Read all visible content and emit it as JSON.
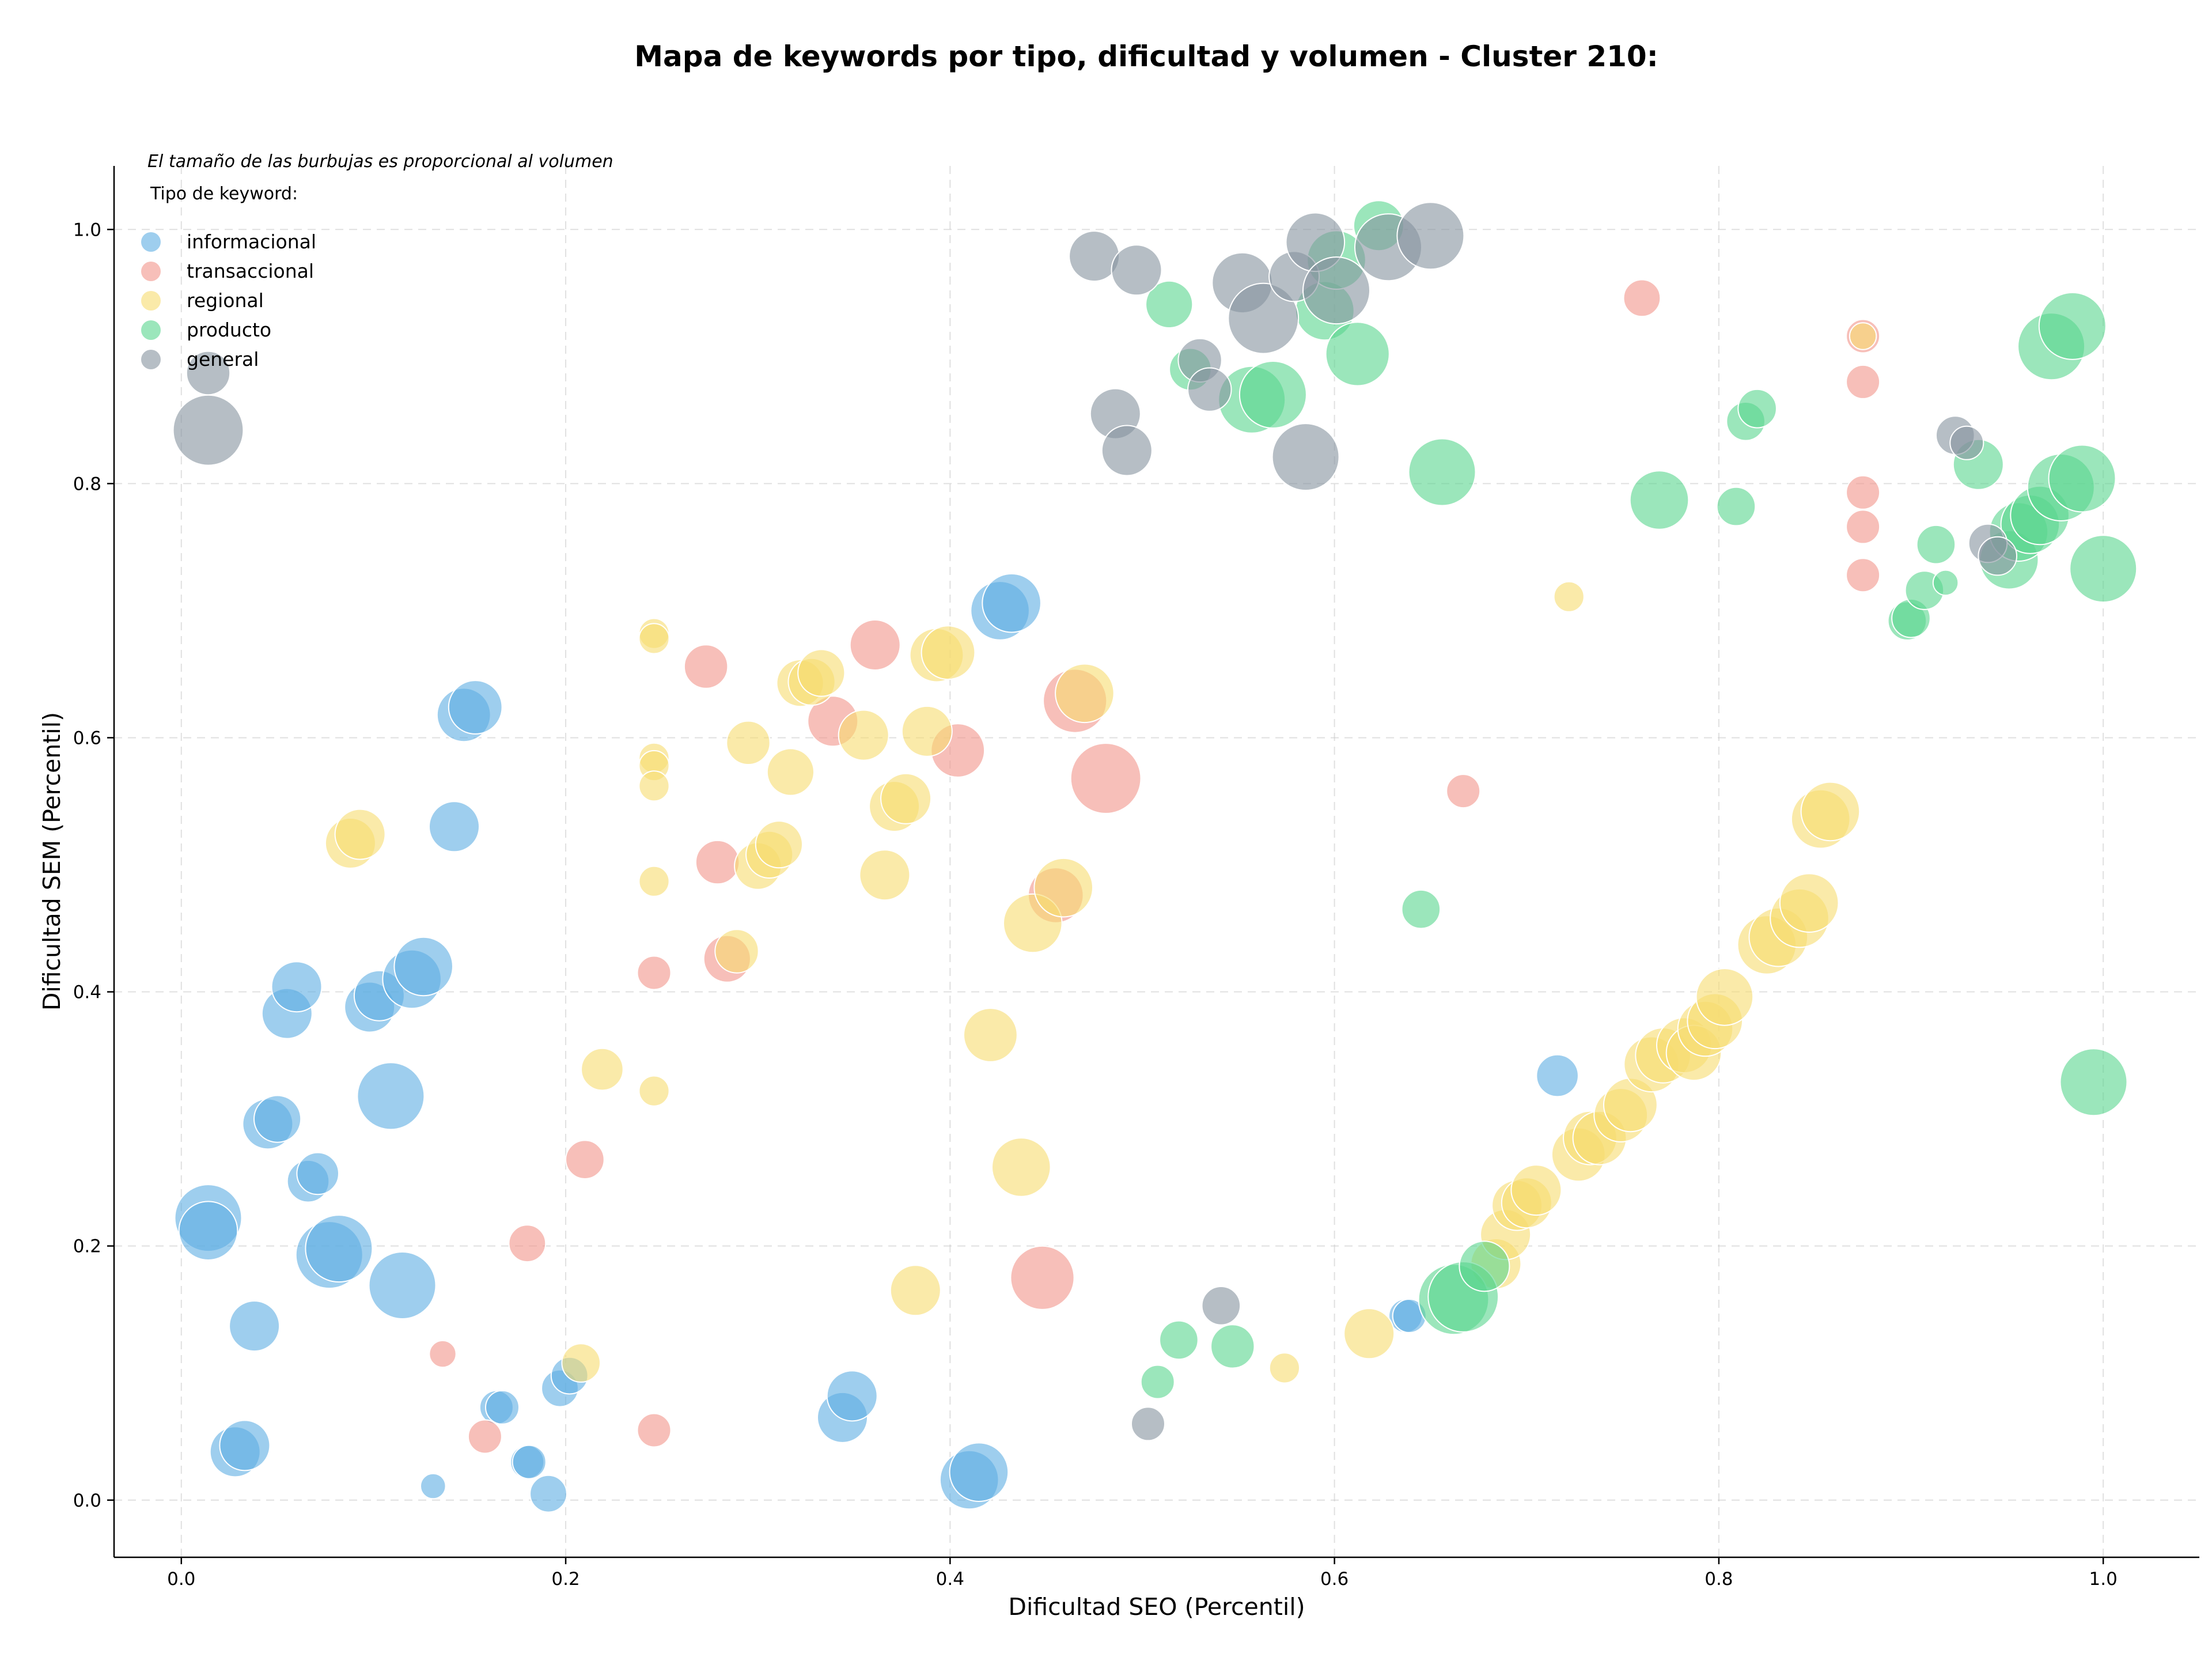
{
  "chart_data": {
    "type": "scatter",
    "title": "Mapa de keywords por tipo, dificultad y volumen - Cluster 210:",
    "xlabel": "Dificultad SEO (Percentil)",
    "ylabel": "Dificultad SEM (Percentil)",
    "xlim": [
      -0.035,
      1.05
    ],
    "ylim": [
      -0.045,
      1.05
    ],
    "x_ticks": [
      "0.0",
      "0.2",
      "0.4",
      "0.6",
      "0.8",
      "1.0"
    ],
    "y_ticks": [
      "0.0",
      "0.2",
      "0.4",
      "0.6",
      "0.8",
      "1.0"
    ],
    "grid": true,
    "note": "El tamaño de las burbujas es proporcional al volumen",
    "legend_title": "Tipo de keyword:",
    "legend_position": "top-left",
    "series": [
      {
        "name": "informacional",
        "color": "#5DADE2",
        "points": [
          [
            0.014,
            0.222,
            4
          ],
          [
            0.014,
            0.212,
            3.5
          ],
          [
            0.038,
            0.137,
            3
          ],
          [
            0.028,
            0.038,
            3
          ],
          [
            0.033,
            0.043,
            3
          ],
          [
            0.045,
            0.296,
            3
          ],
          [
            0.05,
            0.3,
            2.8
          ],
          [
            0.055,
            0.383,
            3
          ],
          [
            0.06,
            0.404,
            3
          ],
          [
            0.066,
            0.251,
            2.5
          ],
          [
            0.071,
            0.257,
            2.5
          ],
          [
            0.077,
            0.193,
            4
          ],
          [
            0.082,
            0.198,
            4
          ],
          [
            0.098,
            0.388,
            3
          ],
          [
            0.103,
            0.397,
            3
          ],
          [
            0.109,
            0.318,
            4
          ],
          [
            0.115,
            0.169,
            4
          ],
          [
            0.12,
            0.41,
            3.5
          ],
          [
            0.126,
            0.42,
            3.5
          ],
          [
            0.142,
            0.53,
            3
          ],
          [
            0.147,
            0.618,
            3.2
          ],
          [
            0.153,
            0.624,
            3.2
          ],
          [
            0.131,
            0.011,
            1.5
          ],
          [
            0.164,
            0.073,
            2
          ],
          [
            0.167,
            0.073,
            2
          ],
          [
            0.18,
            0.03,
            2
          ],
          [
            0.181,
            0.03,
            2
          ],
          [
            0.191,
            0.005,
            2.2
          ],
          [
            0.197,
            0.088,
            2.2
          ],
          [
            0.202,
            0.098,
            2.2
          ],
          [
            0.344,
            0.065,
            3
          ],
          [
            0.349,
            0.082,
            3
          ],
          [
            0.41,
            0.016,
            3.5
          ],
          [
            0.415,
            0.022,
            3.5
          ],
          [
            0.426,
            0.7,
            3.5
          ],
          [
            0.432,
            0.706,
            3.5
          ],
          [
            0.716,
            0.334,
            2.5
          ],
          [
            0.637,
            0.145,
            2
          ],
          [
            0.639,
            0.145,
            2
          ]
        ]
      },
      {
        "name": "transaccional",
        "color": "#F1948A",
        "points": [
          [
            0.136,
            0.115,
            1.6
          ],
          [
            0.158,
            0.05,
            2
          ],
          [
            0.18,
            0.202,
            2.2
          ],
          [
            0.21,
            0.268,
            2.3
          ],
          [
            0.246,
            0.415,
            2
          ],
          [
            0.246,
            0.055,
            2
          ],
          [
            0.273,
            0.656,
            2.6
          ],
          [
            0.279,
            0.502,
            2.6
          ],
          [
            0.284,
            0.426,
            2.8
          ],
          [
            0.339,
            0.613,
            3
          ],
          [
            0.361,
            0.673,
            3
          ],
          [
            0.404,
            0.59,
            3.2
          ],
          [
            0.448,
            0.175,
            3.8
          ],
          [
            0.455,
            0.476,
            3.3
          ],
          [
            0.465,
            0.629,
            3.8
          ],
          [
            0.481,
            0.568,
            4.2
          ],
          [
            0.667,
            0.558,
            2
          ],
          [
            0.76,
            0.946,
            2.2
          ],
          [
            0.875,
            0.916,
            2
          ],
          [
            0.875,
            0.88,
            2
          ],
          [
            0.875,
            0.793,
            2
          ],
          [
            0.875,
            0.766,
            2
          ],
          [
            0.875,
            0.728,
            2
          ]
        ]
      },
      {
        "name": "regional",
        "color": "#F7DC6F",
        "points": [
          [
            0.088,
            0.517,
            3
          ],
          [
            0.093,
            0.524,
            3
          ],
          [
            0.208,
            0.108,
            2.3
          ],
          [
            0.219,
            0.339,
            2.5
          ],
          [
            0.246,
            0.682,
            1.8
          ],
          [
            0.246,
            0.678,
            1.8
          ],
          [
            0.246,
            0.584,
            1.8
          ],
          [
            0.246,
            0.578,
            1.8
          ],
          [
            0.246,
            0.562,
            1.8
          ],
          [
            0.246,
            0.487,
            1.8
          ],
          [
            0.246,
            0.322,
            1.8
          ],
          [
            0.289,
            0.432,
            2.6
          ],
          [
            0.295,
            0.596,
            2.6
          ],
          [
            0.3,
            0.499,
            2.8
          ],
          [
            0.306,
            0.508,
            2.8
          ],
          [
            0.311,
            0.516,
            2.8
          ],
          [
            0.317,
            0.573,
            2.8
          ],
          [
            0.322,
            0.643,
            2.8
          ],
          [
            0.328,
            0.644,
            2.8
          ],
          [
            0.333,
            0.651,
            2.8
          ],
          [
            0.355,
            0.602,
            3
          ],
          [
            0.366,
            0.492,
            3
          ],
          [
            0.371,
            0.546,
            3
          ],
          [
            0.377,
            0.552,
            3
          ],
          [
            0.382,
            0.165,
            3
          ],
          [
            0.388,
            0.605,
            3
          ],
          [
            0.393,
            0.665,
            3.2
          ],
          [
            0.399,
            0.667,
            3.2
          ],
          [
            0.421,
            0.366,
            3.2
          ],
          [
            0.437,
            0.262,
            3.5
          ],
          [
            0.443,
            0.454,
            3.5
          ],
          [
            0.459,
            0.482,
            3.5
          ],
          [
            0.47,
            0.635,
            3.5
          ],
          [
            0.574,
            0.104,
            1.8
          ],
          [
            0.618,
            0.131,
            3
          ],
          [
            0.684,
            0.186,
            3
          ],
          [
            0.689,
            0.209,
            3
          ],
          [
            0.695,
            0.232,
            3
          ],
          [
            0.7,
            0.234,
            3
          ],
          [
            0.705,
            0.244,
            3
          ],
          [
            0.727,
            0.272,
            3.2
          ],
          [
            0.733,
            0.285,
            3.2
          ],
          [
            0.738,
            0.285,
            3.2
          ],
          [
            0.749,
            0.303,
            3.2
          ],
          [
            0.754,
            0.311,
            3.2
          ],
          [
            0.765,
            0.343,
            3.3
          ],
          [
            0.771,
            0.35,
            3.3
          ],
          [
            0.782,
            0.358,
            3.3
          ],
          [
            0.787,
            0.352,
            3.3
          ],
          [
            0.793,
            0.371,
            3.3
          ],
          [
            0.798,
            0.377,
            3.3
          ],
          [
            0.803,
            0.396,
            3.4
          ],
          [
            0.825,
            0.437,
            3.5
          ],
          [
            0.831,
            0.443,
            3.5
          ],
          [
            0.842,
            0.458,
            3.5
          ],
          [
            0.847,
            0.47,
            3.5
          ],
          [
            0.853,
            0.536,
            3.5
          ],
          [
            0.858,
            0.542,
            3.5
          ],
          [
            0.722,
            0.711,
            1.8
          ],
          [
            0.875,
            0.916,
            1.6
          ]
        ]
      },
      {
        "name": "producto",
        "color": "#58D68D",
        "points": [
          [
            0.508,
            0.093,
            2
          ],
          [
            0.519,
            0.126,
            2.3
          ],
          [
            0.525,
            0.89,
            2.5
          ],
          [
            0.514,
            0.941,
            2.8
          ],
          [
            0.547,
            0.121,
            2.6
          ],
          [
            0.557,
            0.866,
            4
          ],
          [
            0.568,
            0.87,
            4
          ],
          [
            0.595,
            0.936,
            3.5
          ],
          [
            0.601,
            0.976,
            3.5
          ],
          [
            0.612,
            0.902,
            3.8
          ],
          [
            0.623,
            1.003,
            3
          ],
          [
            0.645,
            0.465,
            2.3
          ],
          [
            0.656,
            0.809,
            4
          ],
          [
            0.662,
            0.158,
            4.2
          ],
          [
            0.667,
            0.16,
            4.2
          ],
          [
            0.678,
            0.184,
            3
          ],
          [
            0.769,
            0.787,
            3.5
          ],
          [
            0.809,
            0.782,
            2.3
          ],
          [
            0.814,
            0.849,
            2.3
          ],
          [
            0.82,
            0.859,
            2.3
          ],
          [
            0.898,
            0.692,
            2.3
          ],
          [
            0.9,
            0.694,
            2.3
          ],
          [
            0.907,
            0.716,
            2.3
          ],
          [
            0.913,
            0.752,
            2.3
          ],
          [
            0.918,
            0.722,
            1.5
          ],
          [
            0.935,
            0.815,
            3
          ],
          [
            0.951,
            0.74,
            3.5
          ],
          [
            0.956,
            0.762,
            3.5
          ],
          [
            0.962,
            0.768,
            3.5
          ],
          [
            0.967,
            0.775,
            3.5
          ],
          [
            0.973,
            0.908,
            4
          ],
          [
            0.984,
            0.924,
            4
          ],
          [
            0.978,
            0.797,
            4
          ],
          [
            0.989,
            0.804,
            4
          ],
          [
            1.0,
            0.733,
            4
          ],
          [
            0.995,
            0.329,
            4
          ]
        ]
      },
      {
        "name": "general",
        "color": "#85929E",
        "points": [
          [
            0.014,
            0.887,
            2.6
          ],
          [
            0.014,
            0.842,
            4.2
          ],
          [
            0.475,
            0.979,
            3
          ],
          [
            0.486,
            0.855,
            3
          ],
          [
            0.492,
            0.826,
            3
          ],
          [
            0.497,
            0.968,
            3
          ],
          [
            0.503,
            0.06,
            2
          ],
          [
            0.53,
            0.897,
            2.6
          ],
          [
            0.535,
            0.874,
            2.6
          ],
          [
            0.541,
            0.153,
            2.3
          ],
          [
            0.552,
            0.958,
            3.6
          ],
          [
            0.563,
            0.93,
            4.2
          ],
          [
            0.579,
            0.963,
            3
          ],
          [
            0.585,
            0.821,
            4
          ],
          [
            0.59,
            0.99,
            3.5
          ],
          [
            0.601,
            0.952,
            4
          ],
          [
            0.628,
            0.986,
            4
          ],
          [
            0.65,
            0.995,
            4
          ],
          [
            0.923,
            0.838,
            2.3
          ],
          [
            0.929,
            0.832,
            2
          ],
          [
            0.94,
            0.753,
            2.3
          ],
          [
            0.945,
            0.743,
            2.3
          ]
        ]
      }
    ]
  }
}
